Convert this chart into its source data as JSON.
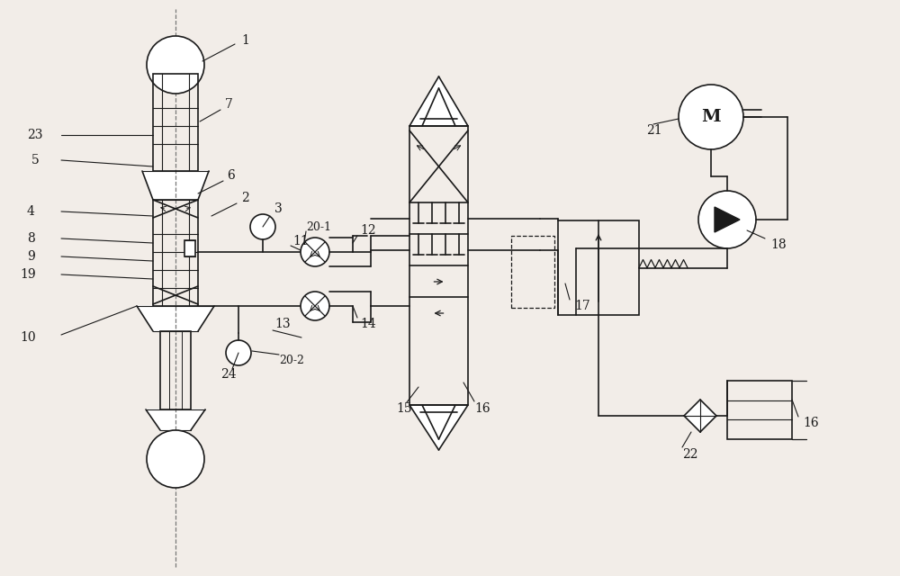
{
  "bg_color": "#f2ede8",
  "line_color": "#1a1a1a",
  "fig_w": 10.0,
  "fig_h": 6.4,
  "dpi": 100
}
